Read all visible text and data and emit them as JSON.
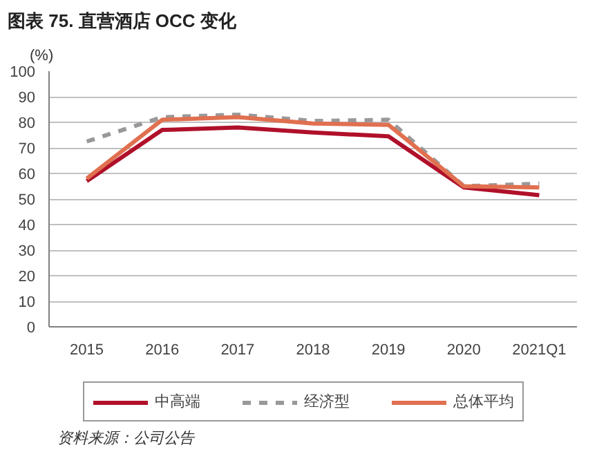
{
  "chart_data": {
    "type": "line",
    "title": "图表 75. 直营酒店 OCC 变化",
    "ylabel": "(%)",
    "categories": [
      "2015",
      "2016",
      "2017",
      "2018",
      "2019",
      "2020",
      "2021Q1"
    ],
    "series": [
      {
        "name": "中高端",
        "color": "#b0102a",
        "values": [
          57,
          77,
          78,
          76,
          74.5,
          54.5,
          51.5
        ]
      },
      {
        "name": "经济型",
        "color": "#999999",
        "line_style": "dashed",
        "values": [
          72.5,
          82,
          83,
          80.5,
          81,
          55,
          56
        ]
      },
      {
        "name": "总体平均",
        "color": "#e07050",
        "values": [
          58,
          81,
          82,
          79.5,
          79,
          55,
          54.5
        ]
      }
    ],
    "ylim": [
      0,
      100
    ],
    "yticks": [
      0,
      10,
      20,
      30,
      40,
      50,
      60,
      70,
      80,
      90,
      100
    ],
    "grid": "y",
    "legend": "bottom",
    "marker": "none",
    "annotations": [
      "资料来源：公司公告"
    ]
  }
}
